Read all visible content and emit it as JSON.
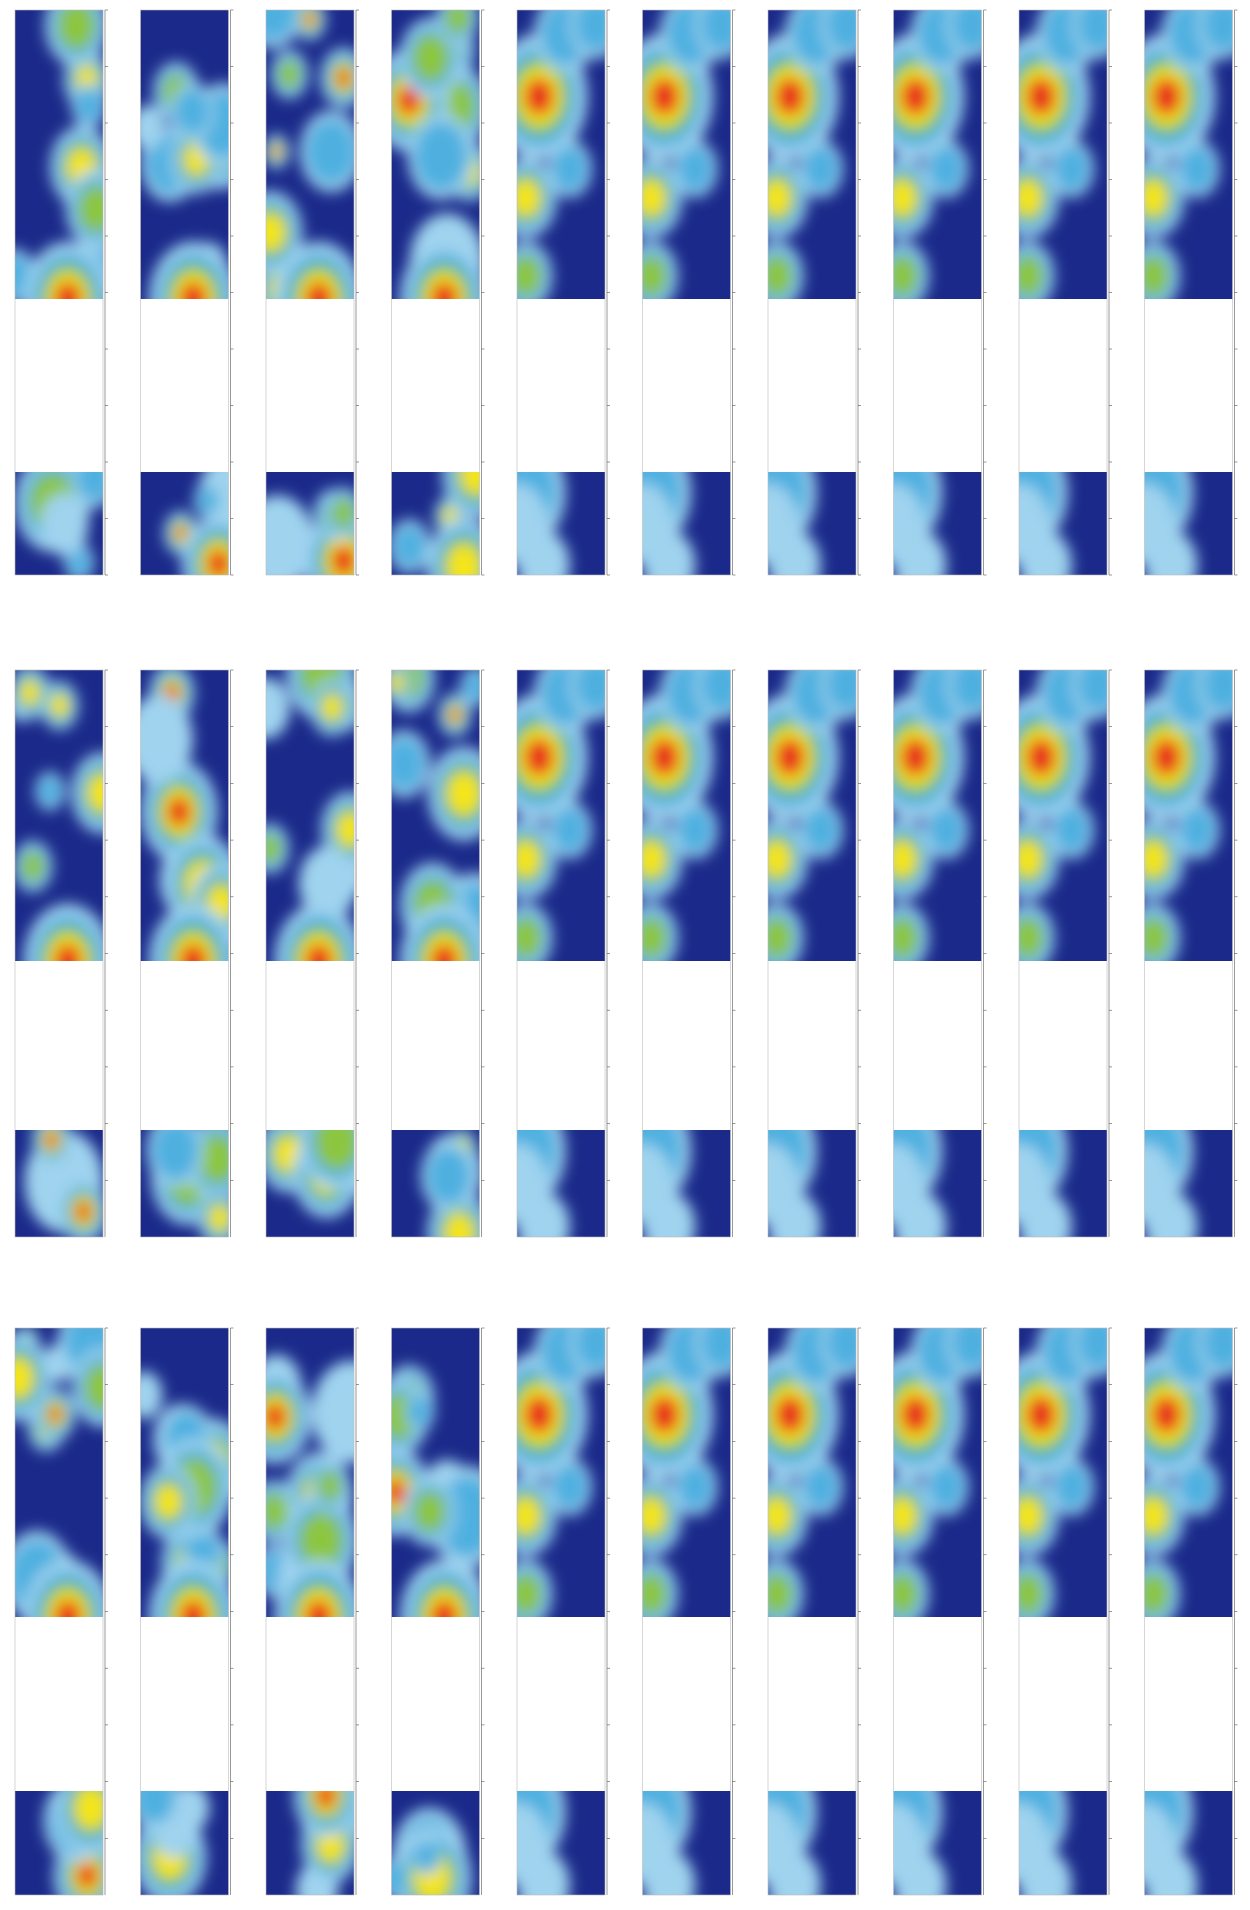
{
  "figure": {}
}
